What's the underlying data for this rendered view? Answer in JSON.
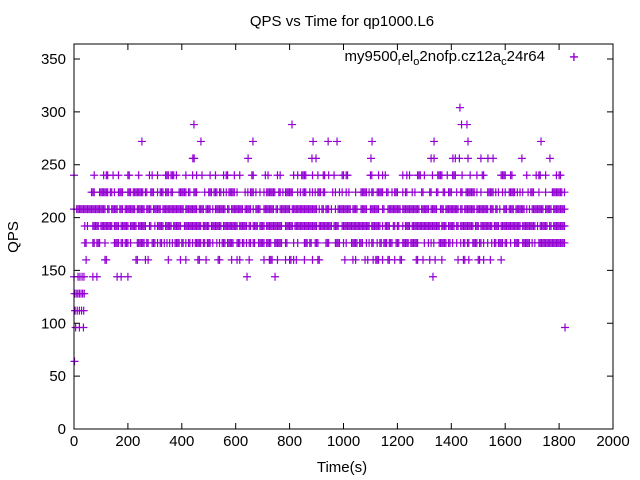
{
  "chart_data": {
    "type": "scatter",
    "title": "QPS vs Time for qp1000.L6",
    "xlabel": "Time(s)",
    "ylabel": "QPS",
    "xlim": [
      0,
      2000
    ],
    "ylim": [
      0,
      365
    ],
    "xticks": [
      0,
      200,
      400,
      600,
      800,
      1000,
      1200,
      1400,
      1600,
      1800,
      2000
    ],
    "yticks": [
      0,
      50,
      100,
      150,
      200,
      250,
      300,
      350
    ],
    "grid": false,
    "legend": {
      "placement": "top-right",
      "label": "my9500_rel_o2nofp.cz12a_c24r64",
      "label_parts": [
        {
          "t": "my9500",
          "sub": false
        },
        {
          "t": "r",
          "sub": true
        },
        {
          "t": "el",
          "sub": false
        },
        {
          "t": "o",
          "sub": true
        },
        {
          "t": "2nofp.cz12a",
          "sub": false
        },
        {
          "t": "c",
          "sub": true
        },
        {
          "t": "24r64",
          "sub": false
        }
      ]
    },
    "color": "#9400d3",
    "series": [
      {
        "name": "my9500_rel_o2nofp.cz12a_c24r64",
        "marker": "plus",
        "points": [
          [
            1855,
            352
          ],
          [
            1432,
            304
          ],
          [
            445,
            288
          ],
          [
            809,
            288
          ],
          [
            1438,
            288
          ],
          [
            1458,
            288
          ],
          [
            252,
            272
          ],
          [
            471,
            272
          ],
          [
            664,
            272
          ],
          [
            887,
            272
          ],
          [
            943,
            272
          ],
          [
            976,
            272
          ],
          [
            1106,
            272
          ],
          [
            1336,
            272
          ],
          [
            1462,
            272
          ],
          [
            1733,
            272
          ],
          [
            441,
            256
          ],
          [
            446,
            256
          ],
          [
            646,
            256
          ],
          [
            883,
            256
          ],
          [
            898,
            256
          ],
          [
            1102,
            256
          ],
          [
            1325,
            256
          ],
          [
            1336,
            256
          ],
          [
            1406,
            256
          ],
          [
            1415,
            256
          ],
          [
            1430,
            256
          ],
          [
            1462,
            256
          ],
          [
            1510,
            256
          ],
          [
            1536,
            256
          ],
          [
            1555,
            256
          ],
          [
            1662,
            256
          ],
          [
            1766,
            256
          ],
          [
            0,
            240
          ],
          [
            0,
            208
          ],
          [
            0,
            144
          ],
          [
            15,
            144
          ],
          [
            22,
            144
          ],
          [
            30,
            144
          ],
          [
            37,
            144
          ],
          [
            70,
            144
          ],
          [
            85,
            144
          ],
          [
            160,
            144
          ],
          [
            175,
            144
          ],
          [
            200,
            144
          ],
          [
            642,
            144
          ],
          [
            746,
            144
          ],
          [
            1332,
            144
          ],
          [
            2,
            128
          ],
          [
            8,
            128
          ],
          [
            14,
            128
          ],
          [
            20,
            128
          ],
          [
            26,
            128
          ],
          [
            32,
            128
          ],
          [
            38,
            128
          ],
          [
            4,
            112
          ],
          [
            12,
            112
          ],
          [
            20,
            112
          ],
          [
            28,
            112
          ],
          [
            36,
            112
          ],
          [
            6,
            96
          ],
          [
            20,
            96
          ],
          [
            35,
            96
          ],
          [
            1822,
            96
          ],
          [
            2,
            64
          ]
        ],
        "bands": [
          {
            "y": 240,
            "x_from": 45,
            "x_to": 1820,
            "fill": 0.3
          },
          {
            "y": 224,
            "x_from": 60,
            "x_to": 1820,
            "fill": 0.55
          },
          {
            "y": 208,
            "x_from": 5,
            "x_to": 1820,
            "fill": 0.8
          },
          {
            "y": 192,
            "x_from": 40,
            "x_to": 1820,
            "fill": 0.85
          },
          {
            "y": 176,
            "x_from": 40,
            "x_to": 1820,
            "fill": 0.6
          },
          {
            "y": 160,
            "x_from": 30,
            "x_to": 1600,
            "fill": 0.2
          }
        ],
        "sample_interval": 5
      }
    ]
  }
}
